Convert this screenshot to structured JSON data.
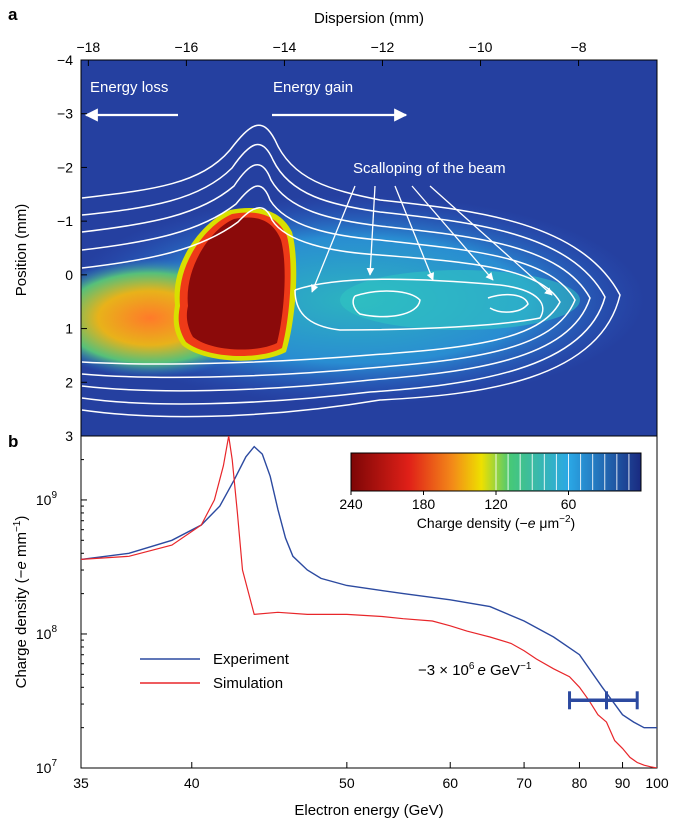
{
  "chart_data": [
    {
      "panel": "a",
      "type": "heatmap",
      "xlabel_top": "Dispersion (mm)",
      "ylabel": "Position (mm)",
      "x_ticks": [
        "−18",
        "−16",
        "−14",
        "−12",
        "−10",
        "−8"
      ],
      "x_tick_values": [
        -18,
        -16,
        -14,
        -12,
        -10,
        -8
      ],
      "xlim": [
        -18.15,
        -6.4
      ],
      "y_ticks": [
        "−4",
        "−3",
        "−2",
        "−1",
        "0",
        "1",
        "2",
        "3"
      ],
      "y_tick_values": [
        -4,
        -3,
        -2,
        -1,
        0,
        1,
        2,
        3
      ],
      "ylim": [
        -4,
        3
      ],
      "annotations": {
        "energy_loss": "Energy loss",
        "energy_gain": "Energy gain",
        "scalloping": "Scalloping of the beam"
      },
      "colorbar": {
        "label_text": "Charge density (−",
        "label_e": "e",
        "label_units": " μm",
        "label_exp": "−2",
        "label_close": ")",
        "ticks": [
          "240",
          "180",
          "120",
          "60"
        ],
        "tick_values": [
          240,
          180,
          120,
          60
        ],
        "range": [
          240,
          0
        ]
      },
      "colors": {
        "high": "#8b0a0a",
        "mid": "#e8e200",
        "low": "#223a9a",
        "contours": "#ffffff"
      }
    },
    {
      "panel": "b",
      "type": "line",
      "xlabel": "Electron energy (GeV)",
      "ylabel_text": "Charge density (−",
      "ylabel_e": "e",
      "ylabel_units": " mm",
      "ylabel_exp": "−1",
      "ylabel_close": ")",
      "x_scale": "reciprocal",
      "y_scale": "log",
      "x_ticks": [
        "35",
        "40",
        "50",
        "60",
        "70",
        "80",
        "90",
        "100"
      ],
      "x_tick_values": [
        35,
        40,
        50,
        60,
        70,
        80,
        90,
        100
      ],
      "xlim": [
        35,
        100
      ],
      "y_ticks": [
        "10",
        "10",
        "10"
      ],
      "y_tick_exps": [
        "7",
        "8",
        "9"
      ],
      "y_tick_values": [
        10000000,
        100000000,
        1000000000
      ],
      "ylim": [
        10000000,
        3000000000
      ],
      "series": [
        {
          "name": "Experiment",
          "color": "#2c4aa0",
          "x": [
            35,
            37,
            39,
            40.5,
            41.5,
            42.3,
            43,
            43.5,
            44,
            44.5,
            45,
            45.5,
            46,
            47,
            48,
            50,
            55,
            60,
            65,
            70,
            75,
            80,
            85,
            88,
            90,
            93,
            96,
            100
          ],
          "y": [
            360000000,
            400000000,
            500000000,
            650000000,
            900000000,
            1400000000,
            2100000000,
            2500000000,
            2200000000,
            1500000000,
            850000000,
            520000000,
            380000000,
            300000000,
            260000000,
            230000000,
            200000000,
            180000000,
            160000000,
            125000000,
            95000000,
            70000000,
            40000000,
            30000000,
            25000000,
            22000000,
            20000000,
            20000000
          ]
        },
        {
          "name": "Simulation",
          "color": "#e8262a",
          "x": [
            35,
            37,
            39,
            40.5,
            41.2,
            41.7,
            42,
            42.2,
            42.5,
            42.8,
            43.5,
            45,
            47,
            50,
            53,
            55,
            58,
            60,
            62,
            65,
            68,
            70,
            72,
            75,
            78,
            80,
            82,
            84,
            86,
            88,
            90,
            92,
            94,
            96,
            98,
            100
          ],
          "y": [
            360000000,
            380000000,
            460000000,
            650000000,
            1000000000,
            1800000000,
            3000000000,
            2000000000,
            800000000,
            300000000,
            140000000,
            145000000,
            140000000,
            140000000,
            135000000,
            130000000,
            125000000,
            115000000,
            105000000,
            95000000,
            85000000,
            75000000,
            65000000,
            55000000,
            48000000,
            40000000,
            32000000,
            25000000,
            22000000,
            16000000,
            14000000,
            12000000,
            11000000,
            10500000,
            10200000,
            10000000
          ]
        }
      ],
      "error_bar": {
        "label_pre": "−3 × 10",
        "label_exp": "6",
        "label_e": "e",
        "label_units": " GeV",
        "label_units_exp": "−1",
        "center_x": 86,
        "x_range": [
          78,
          94
        ],
        "y": 32000000,
        "color": "#2c4aa0"
      }
    }
  ]
}
